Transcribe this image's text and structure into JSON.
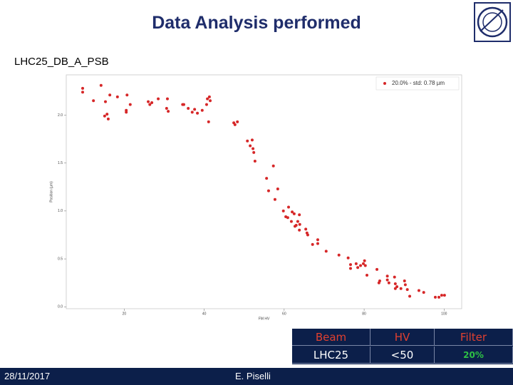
{
  "title": "Data Analysis performed",
  "subtitle": "LHC25_DB_A_PSB",
  "chart_data": {
    "type": "scatter",
    "x_label": "FM HV",
    "y_label": "Position (µm)",
    "xlim": [
      5.5,
      104.4
    ],
    "ylim": [
      -0.02,
      2.42
    ],
    "xticks": [
      20,
      40,
      60,
      80,
      100
    ],
    "yticks": [
      {
        "value": 0,
        "label": "0.0"
      },
      0.5,
      {
        "value": 1,
        "label": "1.0"
      },
      1.5,
      {
        "value": 2,
        "label": "2.0"
      }
    ],
    "legend": "upper right",
    "x": [
      9.6,
      9.6,
      14.2,
      12.3,
      15.3,
      16.4,
      15.7,
      15.1,
      16.0,
      18.3,
      20.5,
      20.5,
      20.7,
      21.5,
      26.0,
      26.4,
      26.9,
      28.5,
      30.8,
      30.6,
      31.0,
      34.6,
      34.9,
      36.0,
      37.0,
      37.6,
      38.3,
      39.5,
      40.6,
      40.8,
      41.3,
      41.5,
      41.1,
      47.4,
      47.7,
      48.3,
      50.8,
      51.5,
      52.0,
      52.2,
      52.4,
      52.7,
      55.6,
      56.1,
      57.3,
      57.7,
      58.4,
      59.8,
      60.4,
      61.1,
      60.9,
      61.8,
      62.0,
      62.5,
      62.7,
      63.0,
      63.4,
      63.8,
      63.8,
      63.9,
      65.4,
      65.7,
      65.9,
      67.1,
      68.4,
      68.4,
      70.5,
      73.7,
      76.0,
      76.6,
      76.6,
      78.0,
      78.4,
      79.1,
      79.8,
      80.1,
      80.3,
      80.7,
      83.2,
      83.9,
      83.7,
      85.8,
      85.8,
      86.2,
      87.6,
      87.8,
      87.8,
      88.2,
      89.2,
      90.1,
      90.3,
      90.8,
      91.4,
      93.7,
      94.9,
      97.8,
      98.7,
      99.4,
      100.1
    ],
    "series": [
      {
        "name": "20.0% - std: 0.78 µm",
        "color": "#d62728",
        "values": [
          2.28,
          2.24,
          2.31,
          2.15,
          2.14,
          2.21,
          2.01,
          1.99,
          1.96,
          2.19,
          2.05,
          2.03,
          2.21,
          2.11,
          2.14,
          2.11,
          2.13,
          2.17,
          2.17,
          2.07,
          2.04,
          2.11,
          2.11,
          2.07,
          2.03,
          2.06,
          2.02,
          2.05,
          2.11,
          2.17,
          2.19,
          2.15,
          1.93,
          1.92,
          1.9,
          1.93,
          1.73,
          1.68,
          1.74,
          1.65,
          1.61,
          1.52,
          1.34,
          1.21,
          1.47,
          1.12,
          1.23,
          1.0,
          0.94,
          1.04,
          0.93,
          0.89,
          0.99,
          0.97,
          0.84,
          0.85,
          0.89,
          0.96,
          0.8,
          0.86,
          0.81,
          0.77,
          0.75,
          0.65,
          0.7,
          0.66,
          0.58,
          0.54,
          0.51,
          0.44,
          0.4,
          0.45,
          0.41,
          0.43,
          0.45,
          0.48,
          0.43,
          0.33,
          0.39,
          0.27,
          0.25,
          0.32,
          0.28,
          0.25,
          0.31,
          0.24,
          0.19,
          0.21,
          0.19,
          0.27,
          0.23,
          0.18,
          0.11,
          0.17,
          0.15,
          0.1,
          0.1,
          0.12,
          0.12
        ]
      }
    ]
  },
  "table": {
    "header": [
      "Beam",
      "HV",
      "Filter"
    ],
    "rows": [
      [
        "LHC25",
        "<50",
        "20%"
      ]
    ]
  },
  "footer": {
    "date": "28/11/2017",
    "author": "E. Piselli"
  }
}
